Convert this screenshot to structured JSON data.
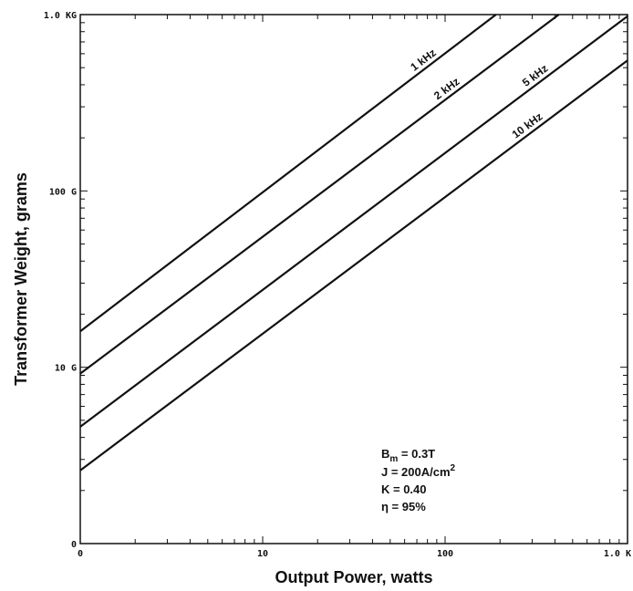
{
  "chart_data": {
    "type": "line",
    "xscale": "log",
    "yscale": "log",
    "xlim": [
      1,
      1000
    ],
    "ylim": [
      1,
      1000
    ],
    "xlabel": "Output Power, watts",
    "ylabel": "Transformer Weight, grams",
    "x_ticks": [
      {
        "value": 1,
        "label": "0"
      },
      {
        "value": 10,
        "label": "10"
      },
      {
        "value": 100,
        "label": "100"
      },
      {
        "value": 1000,
        "label": "1.0 K"
      }
    ],
    "y_ticks": [
      {
        "value": 1,
        "label": "0"
      },
      {
        "value": 10,
        "label": "10 G"
      },
      {
        "value": 100,
        "label": "100 G"
      },
      {
        "value": 1000,
        "label": "1.0 KG"
      }
    ],
    "grid": false,
    "series": [
      {
        "name": "1 kHz",
        "x": [
          1,
          190
        ],
        "y": [
          16,
          1000
        ]
      },
      {
        "name": "2 kHz",
        "x": [
          1,
          420
        ],
        "y": [
          9.2,
          1000
        ]
      },
      {
        "name": "5 kHz",
        "x": [
          1,
          1000
        ],
        "y": [
          4.6,
          980
        ]
      },
      {
        "name": "10 kHz",
        "x": [
          1,
          1000
        ],
        "y": [
          2.6,
          550
        ]
      }
    ],
    "annotation_lines": [
      "B",
      "m",
      " = 0.3T",
      "J = 200A/cm",
      "2",
      "K = 0.40",
      "η = 95%"
    ],
    "color": "#111111"
  }
}
